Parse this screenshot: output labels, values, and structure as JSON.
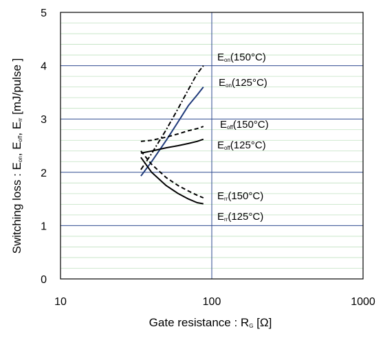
{
  "chart_data": {
    "type": "line",
    "title": "",
    "xlabel": {
      "main": "Gate resistance : R",
      "sub": "G",
      "unit": " [Ω]"
    },
    "ylabel": {
      "p1": "Switching loss  : E",
      "s1": "on",
      "p2": ",  E",
      "s2": "off",
      "p3": ",  E",
      "s3": "rr",
      "p4": "  [mJ/pulse ]"
    },
    "x_scale": "log",
    "xlim": [
      10,
      1000
    ],
    "ylim": [
      0,
      5
    ],
    "x_ticks": [
      10,
      100,
      1000
    ],
    "x_tick_labels": [
      "10",
      "100",
      "1000"
    ],
    "y_ticks": [
      0,
      1,
      2,
      3,
      4,
      5
    ],
    "y_tick_labels": [
      "0",
      "1",
      "2",
      "3",
      "4",
      "5"
    ],
    "grid": true,
    "series": [
      {
        "label_main": "E",
        "label_sub": "on",
        "label_tail": "(150°C)",
        "dash": "dashdot",
        "x": [
          34,
          40,
          50,
          60,
          70,
          80,
          88
        ],
        "y": [
          2.05,
          2.35,
          2.8,
          3.2,
          3.55,
          3.85,
          4.0
        ]
      },
      {
        "label_main": "E",
        "label_sub": "on",
        "label_tail": "(125°C)",
        "dash": "solid",
        "x": [
          34,
          40,
          50,
          60,
          70,
          80,
          88
        ],
        "y": [
          1.93,
          2.2,
          2.6,
          2.95,
          3.25,
          3.45,
          3.6
        ]
      },
      {
        "label_main": "E",
        "label_sub": "off",
        "label_tail": "(150°C)",
        "dash": "dash",
        "x": [
          34,
          40,
          50,
          60,
          70,
          80,
          88
        ],
        "y": [
          2.58,
          2.6,
          2.66,
          2.72,
          2.78,
          2.82,
          2.86
        ]
      },
      {
        "label_main": "E",
        "label_sub": "off",
        "label_tail": "(125°C)",
        "dash": "solid",
        "x": [
          34,
          40,
          50,
          60,
          70,
          80,
          88
        ],
        "y": [
          2.36,
          2.4,
          2.46,
          2.5,
          2.54,
          2.58,
          2.62
        ]
      },
      {
        "label_main": "E",
        "label_sub": "rr",
        "label_tail": "(150°C)",
        "dash": "dash",
        "x": [
          34,
          40,
          50,
          60,
          70,
          80,
          88
        ],
        "y": [
          2.4,
          2.15,
          1.9,
          1.75,
          1.65,
          1.57,
          1.52
        ]
      },
      {
        "label_main": "E",
        "label_sub": "rr",
        "label_tail": "(125°C)",
        "dash": "solid",
        "x": [
          34,
          40,
          50,
          60,
          70,
          80,
          88
        ],
        "y": [
          2.28,
          2.0,
          1.75,
          1.6,
          1.5,
          1.43,
          1.41
        ]
      }
    ]
  },
  "colors": {
    "major_grid": "#2e4a8f",
    "minor_grid": "#bfe0bf",
    "axis": "#000000",
    "series_dark": "#000000",
    "series_blue": "#1f3a7a"
  }
}
